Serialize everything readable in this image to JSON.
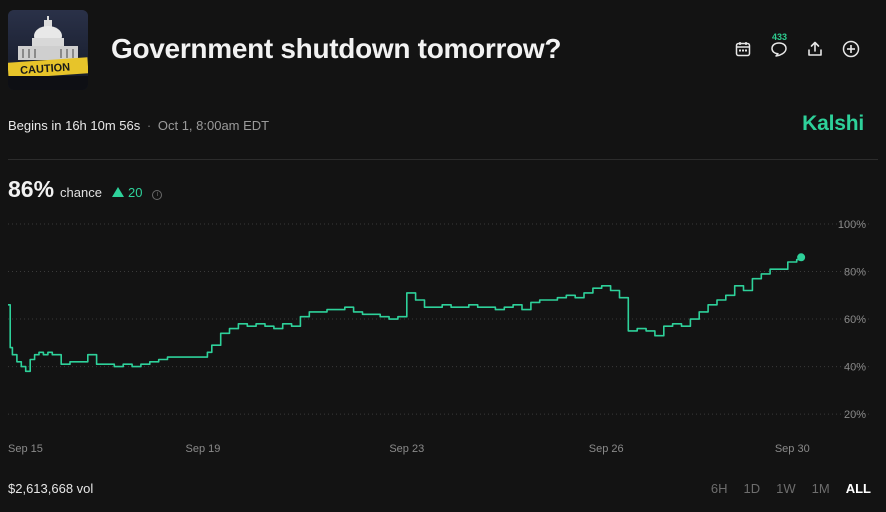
{
  "market": {
    "title": "Government shutdown tomorrow?",
    "thumbnail_caption": "CAUTION",
    "begins": "Begins in 16h 10m 56s",
    "separator": "·",
    "date": "Oct 1, 8:00am EDT",
    "brand": "Kalshi",
    "comments_count": "433",
    "chance_value": "86%",
    "chance_label": "chance",
    "delta": "20",
    "volume": "$2,613,668 vol"
  },
  "icons": {
    "calendar": "calendar-icon",
    "comments": "comment-icon",
    "share": "share-icon",
    "add": "plus-circle-icon",
    "info": "info-icon",
    "delta": "triangle-up-icon"
  },
  "ranges": [
    {
      "label": "6H",
      "active": false
    },
    {
      "label": "1D",
      "active": false
    },
    {
      "label": "1W",
      "active": false
    },
    {
      "label": "1M",
      "active": false
    },
    {
      "label": "ALL",
      "active": true
    }
  ],
  "colors": {
    "background": "#131313",
    "line": "#2ed19a",
    "brand": "#2ed19a",
    "grid": "#3a3a3a",
    "axis_text": "#8a8a8a"
  },
  "chart_data": {
    "type": "line",
    "ylim": [
      15,
      100
    ],
    "y_ticks": [
      100,
      80,
      60,
      40,
      20
    ],
    "y_tick_labels": [
      "100%",
      "80%",
      "60%",
      "40%",
      "20%"
    ],
    "x_tick_labels": [
      "Sep 15",
      "Sep 19",
      "Sep 23",
      "Sep 26",
      "Sep 30"
    ],
    "x_tick_positions": [
      0.0,
      4.4,
      9.0,
      13.5,
      17.7
    ],
    "x_range": [
      0,
      18.1
    ],
    "grid": true,
    "series": [
      {
        "values_x": [
          0.0,
          0.05,
          0.1,
          0.2,
          0.3,
          0.4,
          0.5,
          0.6,
          0.7,
          0.8,
          0.9,
          1.0,
          1.2,
          1.4,
          1.6,
          1.8,
          2.0,
          2.2,
          2.4,
          2.6,
          2.8,
          3.0,
          3.2,
          3.4,
          3.6,
          3.8,
          4.0,
          4.2,
          4.4,
          4.5,
          4.6,
          4.8,
          5.0,
          5.2,
          5.4,
          5.6,
          5.8,
          6.0,
          6.2,
          6.4,
          6.6,
          6.8,
          7.0,
          7.2,
          7.4,
          7.6,
          7.8,
          8.0,
          8.2,
          8.4,
          8.6,
          8.8,
          9.0,
          9.2,
          9.4,
          9.6,
          9.8,
          10.0,
          10.2,
          10.4,
          10.6,
          10.8,
          11.0,
          11.2,
          11.4,
          11.6,
          11.8,
          12.0,
          12.2,
          12.4,
          12.6,
          12.8,
          13.0,
          13.2,
          13.4,
          13.6,
          13.8,
          14.0,
          14.2,
          14.4,
          14.6,
          14.8,
          15.0,
          15.2,
          15.4,
          15.6,
          15.8,
          16.0,
          16.2,
          16.4,
          16.6,
          16.8,
          17.0,
          17.2,
          17.4,
          17.6,
          17.8,
          17.9
        ],
        "values": [
          66,
          48,
          45,
          42,
          40,
          38,
          43,
          45,
          46,
          45,
          46,
          45,
          41,
          42,
          42,
          45,
          41,
          41,
          40,
          41,
          40,
          41,
          42,
          43,
          44,
          44,
          44,
          44,
          44,
          46,
          49,
          54,
          56,
          58,
          57,
          58,
          57,
          56,
          58,
          57,
          61,
          63,
          63,
          64,
          64,
          65,
          63,
          62,
          62,
          61,
          60,
          61,
          71,
          68,
          65,
          65,
          66,
          65,
          65,
          66,
          65,
          65,
          64,
          65,
          66,
          64,
          67,
          68,
          68,
          69,
          70,
          69,
          71,
          73,
          74,
          72,
          69,
          55,
          56,
          55,
          53,
          57,
          58,
          57,
          60,
          63,
          66,
          68,
          70,
          74,
          72,
          77,
          79,
          81,
          81,
          84,
          85,
          86
        ]
      }
    ]
  }
}
